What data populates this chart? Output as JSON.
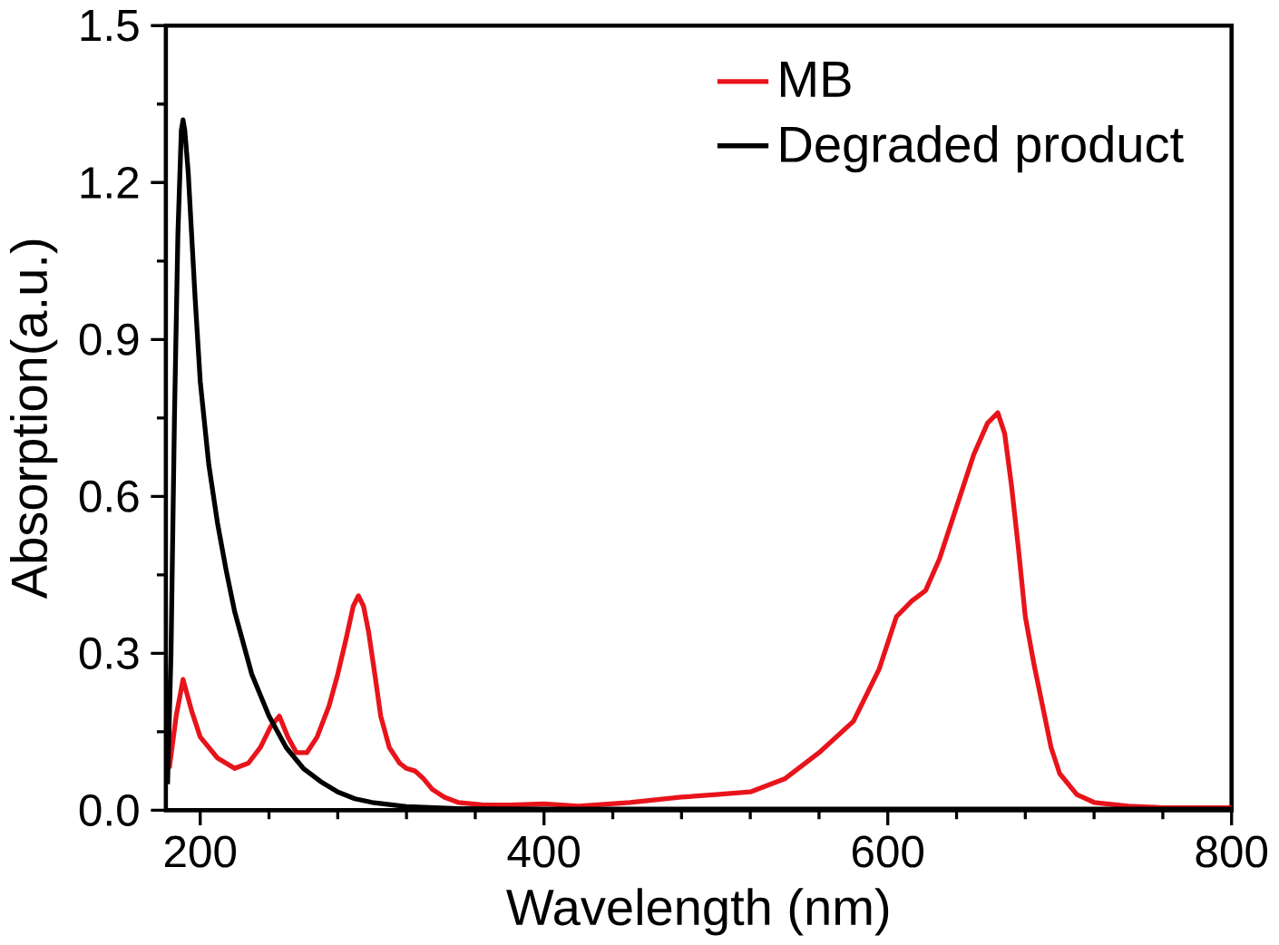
{
  "chart_data": {
    "type": "line",
    "xlabel": "Wavelength (nm)",
    "ylabel": "Absorption(a.u.)",
    "xlim": [
      180,
      800
    ],
    "xticks": [
      200,
      400,
      600,
      800
    ],
    "ylim": [
      0,
      1.5
    ],
    "yticks": [
      {
        "value": 0,
        "label": "0.0"
      },
      0.3,
      0.6,
      0.9,
      1.2,
      1.5
    ],
    "legend": "top right",
    "grid": false,
    "marker": "none",
    "line_style": "solid",
    "series": [
      {
        "name": "MB",
        "color": "#e8141b",
        "x": [
          182,
          186,
          190,
          195,
          200,
          210,
          220,
          228,
          235,
          241,
          246,
          251,
          256,
          262,
          268,
          275,
          280,
          285,
          289,
          292,
          295,
          298,
          302,
          305,
          310,
          316,
          320,
          325,
          330,
          335,
          342,
          350,
          365,
          380,
          400,
          420,
          450,
          480,
          500,
          520,
          540,
          560,
          580,
          595,
          605,
          614,
          622,
          630,
          640,
          650,
          658,
          664,
          668,
          672,
          676,
          680,
          685,
          690,
          695,
          700,
          710,
          720,
          740,
          760,
          800
        ],
        "values": [
          0.08,
          0.18,
          0.25,
          0.19,
          0.14,
          0.1,
          0.08,
          0.09,
          0.12,
          0.16,
          0.18,
          0.14,
          0.11,
          0.11,
          0.14,
          0.2,
          0.26,
          0.33,
          0.39,
          0.41,
          0.39,
          0.34,
          0.25,
          0.18,
          0.12,
          0.09,
          0.08,
          0.075,
          0.06,
          0.04,
          0.025,
          0.015,
          0.01,
          0.01,
          0.012,
          0.008,
          0.015,
          0.025,
          0.03,
          0.035,
          0.06,
          0.11,
          0.17,
          0.27,
          0.37,
          0.4,
          0.42,
          0.48,
          0.58,
          0.68,
          0.74,
          0.76,
          0.72,
          0.62,
          0.5,
          0.37,
          0.28,
          0.2,
          0.12,
          0.07,
          0.03,
          0.015,
          0.008,
          0.005,
          0.005
        ]
      },
      {
        "name": "Degraded product",
        "color": "#000000",
        "x": [
          181,
          183,
          185,
          187,
          189,
          190,
          191,
          193,
          195,
          197,
          200,
          205,
          210,
          215,
          220,
          230,
          240,
          250,
          260,
          270,
          280,
          290,
          300,
          320,
          350,
          400,
          500,
          600,
          700,
          800
        ],
        "values": [
          0.05,
          0.3,
          0.75,
          1.1,
          1.3,
          1.32,
          1.3,
          1.22,
          1.1,
          0.98,
          0.82,
          0.66,
          0.55,
          0.46,
          0.38,
          0.26,
          0.18,
          0.12,
          0.08,
          0.055,
          0.035,
          0.022,
          0.015,
          0.007,
          0.003,
          0.002,
          0.002,
          0.002,
          0.002,
          0.002
        ]
      }
    ]
  }
}
